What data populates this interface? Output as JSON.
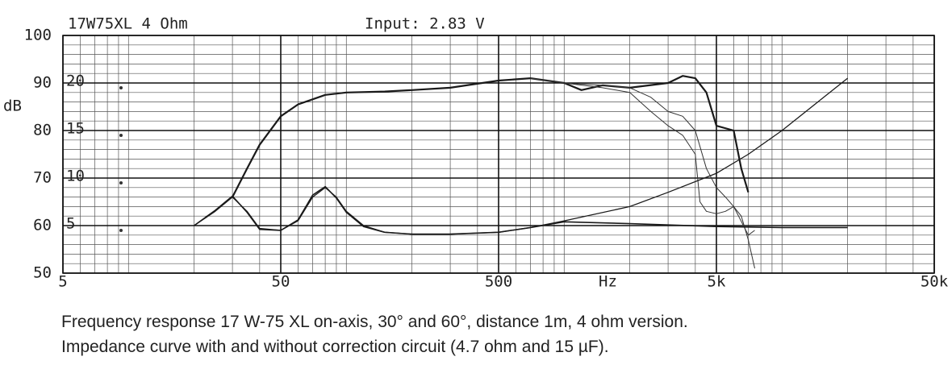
{
  "chart_data": {
    "type": "line",
    "title": "17W75XL 4 Ohm",
    "subtitle": "Input: 2.83 V",
    "y_label": "dB",
    "x_label": "Hz",
    "caption": [
      "Frequency response 17 W-75 XL on-axis, 30° and 60°, distance 1m, 4 ohm version.",
      "Impedance  curve with and without correction circuit (4.7 ohm and 15 µF)."
    ],
    "log_x": true,
    "grid": true,
    "minor_grid": true,
    "xlim": [
      5,
      50000
    ],
    "xticks": [
      5,
      50,
      500,
      {
        "value": 5000,
        "label": "5k"
      },
      {
        "value": 50000,
        "label": "50k"
      }
    ],
    "ylim": [
      50,
      100
    ],
    "yticks": [
      50,
      60,
      70,
      80,
      90,
      100
    ],
    "y2lim": [
      0,
      25
    ],
    "y2ticks": [
      5,
      10,
      15,
      20
    ],
    "series": [
      {
        "color": "#1a1a1a",
        "linewidth": 2.2,
        "x": [
          30,
          35,
          40,
          50,
          60,
          80,
          100,
          150,
          200,
          300,
          500,
          700,
          1000,
          1200,
          1500,
          2000,
          3000,
          3500,
          4000,
          4500,
          5000,
          6000,
          6500,
          7000
        ],
        "values": [
          66,
          72,
          77,
          83,
          85.5,
          87.5,
          88,
          88.2,
          88.5,
          89,
          90.5,
          91,
          90,
          88.5,
          89.5,
          89,
          90,
          91.5,
          91,
          88,
          81,
          80,
          72,
          67
        ]
      },
      {
        "color": "#333333",
        "linewidth": 1,
        "x": [
          700,
          1000,
          1500,
          2000,
          2500,
          3000,
          3500,
          4000,
          4500,
          5000,
          5500,
          6000,
          6500,
          7000,
          7500
        ],
        "values": [
          91,
          90,
          89.5,
          89,
          87,
          84,
          83,
          80,
          72,
          68,
          66,
          64,
          62,
          57,
          51
        ]
      },
      {
        "color": "#333333",
        "linewidth": 1,
        "x": [
          700,
          1000,
          1500,
          2000,
          2500,
          3000,
          3500,
          4000,
          4200,
          4500,
          5000,
          5500,
          6000,
          7000,
          7500
        ],
        "values": [
          91,
          90,
          89,
          88,
          84,
          81,
          79,
          75,
          65,
          63,
          62.5,
          63,
          64,
          58,
          59
        ]
      },
      {
        "color": "#1a1a1a",
        "linewidth": 1.3,
        "axis": "y2",
        "x": [
          20,
          25,
          30,
          35,
          40,
          50,
          60,
          70,
          80,
          90,
          100,
          120,
          150,
          200,
          300,
          500,
          700,
          1000,
          2000,
          3000,
          5000,
          7000,
          10000,
          20000
        ],
        "values": [
          5,
          6.5,
          8,
          6.5,
          4.7,
          4.5,
          5.5,
          8,
          9,
          8,
          6.5,
          5,
          4.3,
          4.1,
          4.1,
          4.3,
          4.8,
          5.5,
          7,
          8.5,
          10.5,
          12.5,
          15,
          20.5
        ]
      },
      {
        "color": "#1a1a1a",
        "linewidth": 1.6,
        "axis": "y2",
        "x": [
          20,
          25,
          30,
          35,
          40,
          50,
          60,
          70,
          80,
          90,
          100,
          120,
          150,
          200,
          300,
          500,
          700,
          1000,
          2000,
          5000,
          10000,
          20000
        ],
        "values": [
          5,
          6.6,
          8.1,
          6.4,
          4.6,
          4.5,
          5.6,
          8.2,
          9.1,
          7.9,
          6.4,
          4.9,
          4.3,
          4.1,
          4.1,
          4.3,
          4.8,
          5.4,
          5.2,
          4.9,
          4.8,
          4.8
        ]
      }
    ]
  }
}
